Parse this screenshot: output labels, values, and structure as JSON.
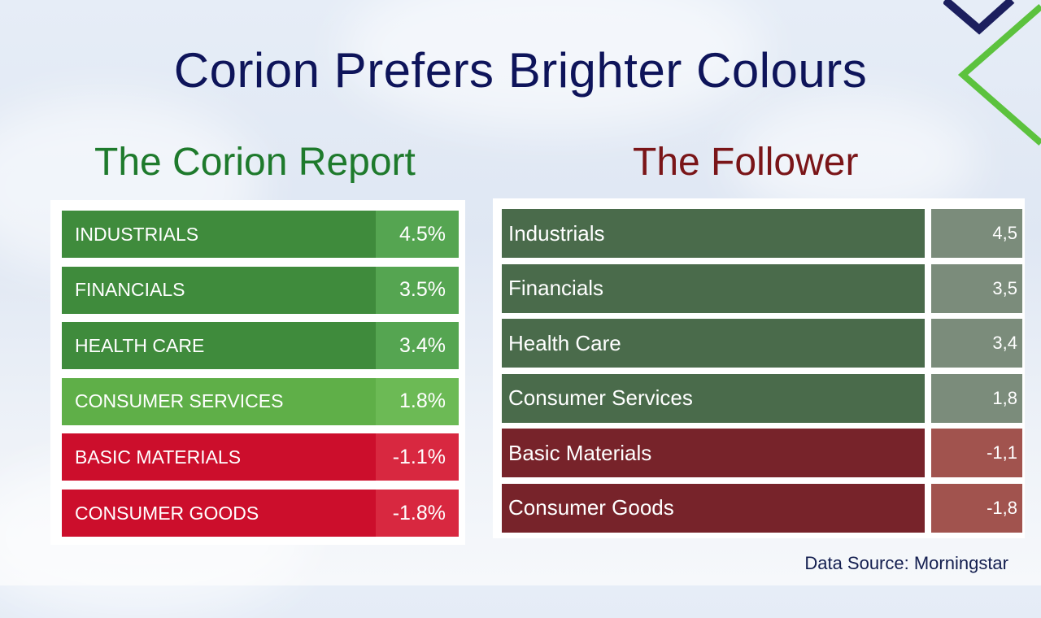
{
  "title": "Corion Prefers Brighter Colours",
  "left_panel": {
    "title": "The Corion Report",
    "rows": [
      {
        "label": "INDUSTRIALS",
        "value": "4.5%",
        "name_color": "#3f8b3c",
        "value_color": "#55a551"
      },
      {
        "label": "FINANCIALS",
        "value": "3.5%",
        "name_color": "#3f8b3c",
        "value_color": "#55a551"
      },
      {
        "label": "HEALTH CARE",
        "value": "3.4%",
        "name_color": "#3f8b3c",
        "value_color": "#55a551"
      },
      {
        "label": "CONSUMER SERVICES",
        "value": "1.8%",
        "name_color": "#5faf48",
        "value_color": "#6cba55"
      },
      {
        "label": "BASIC MATERIALS",
        "value": "-1.1%",
        "name_color": "#cc0e2c",
        "value_color": "#d82840"
      },
      {
        "label": "CONSUMER GOODS",
        "value": "-1.8%",
        "name_color": "#cc0e2c",
        "value_color": "#d82840"
      }
    ]
  },
  "right_panel": {
    "title": "The Follower",
    "rows": [
      {
        "label": "Industrials",
        "value": "4,5",
        "name_color": "#4a6b4b",
        "value_color": "#7b8c7b"
      },
      {
        "label": "Financials",
        "value": "3,5",
        "name_color": "#4a6b4b",
        "value_color": "#7b8c7b"
      },
      {
        "label": "Health Care",
        "value": "3,4",
        "name_color": "#4a6b4b",
        "value_color": "#7b8c7b"
      },
      {
        "label": "Consumer Services",
        "value": "1,8",
        "name_color": "#4a6b4b",
        "value_color": "#7b8c7b"
      },
      {
        "label": "Basic Materials",
        "value": "-1,1",
        "name_color": "#77232a",
        "value_color": "#a1534e"
      },
      {
        "label": "Consumer Goods",
        "value": "-1,8",
        "name_color": "#77232a",
        "value_color": "#a1534e"
      }
    ]
  },
  "source": "Data Source: Morningstar",
  "colors": {
    "title": "#0e145a",
    "left_title": "#1e7a2c",
    "right_title": "#7a1518",
    "deco_navy": "#1c1f5e",
    "deco_green": "#5cc23e"
  }
}
